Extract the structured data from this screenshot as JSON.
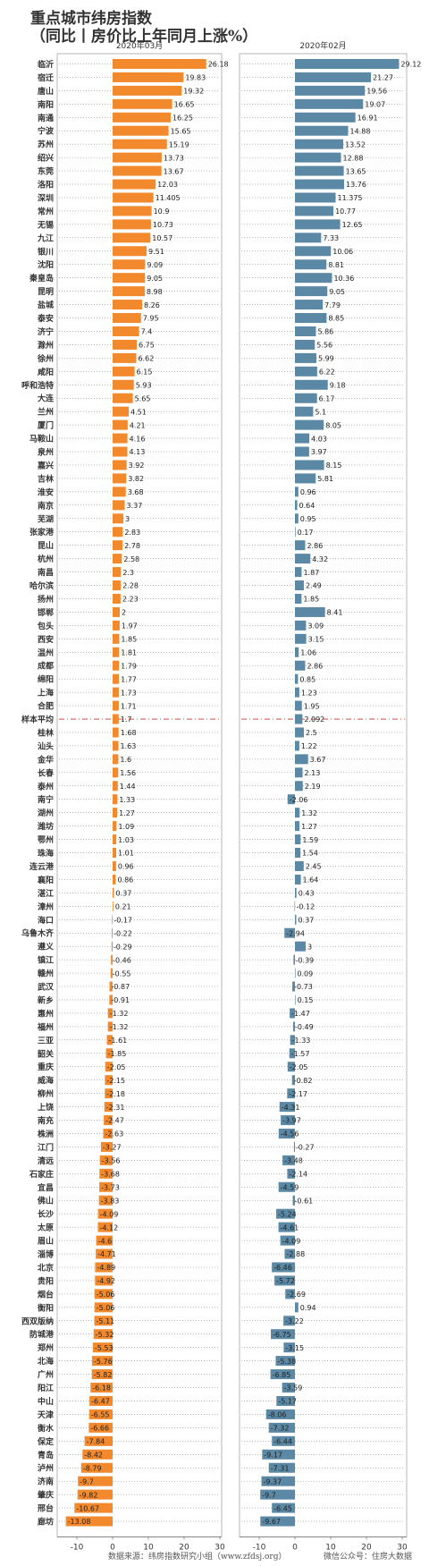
{
  "title_line1": "重点城市纬房指数",
  "title_line2": "（同比丨房价比上年同月上涨%）",
  "footer_source": "数据来源：纬房指数研究小组（www.zfdsj.org）",
  "footer_wechat": "微信公众号：住房大数据",
  "colors": {
    "march": "#f2892c",
    "feb": "#5b88a4",
    "avg_line": "#c0392b"
  },
  "chart_data": {
    "type": "bar",
    "orientation": "horizontal",
    "categories": [
      "临沂",
      "宿迁",
      "唐山",
      "南阳",
      "南通",
      "宁波",
      "苏州",
      "绍兴",
      "东莞",
      "洛阳",
      "深圳",
      "常州",
      "无锡",
      "九江",
      "银川",
      "沈阳",
      "秦皇岛",
      "昆明",
      "盐城",
      "泰安",
      "济宁",
      "滁州",
      "徐州",
      "咸阳",
      "呼和浩特",
      "大连",
      "兰州",
      "厦门",
      "马鞍山",
      "泉州",
      "嘉兴",
      "吉林",
      "淮安",
      "南京",
      "芜湖",
      "张家港",
      "昆山",
      "杭州",
      "南昌",
      "哈尔滨",
      "扬州",
      "邯郸",
      "包头",
      "西安",
      "温州",
      "成都",
      "绵阳",
      "上海",
      "合肥",
      "样本平均",
      "桂林",
      "汕头",
      "金华",
      "长春",
      "泰州",
      "南宁",
      "湖州",
      "潍坊",
      "鄂州",
      "珠海",
      "连云港",
      "襄阳",
      "湛江",
      "漳州",
      "海口",
      "乌鲁木齐",
      "遵义",
      "镇江",
      "赣州",
      "武汉",
      "新乡",
      "惠州",
      "福州",
      "三亚",
      "韶关",
      "重庆",
      "威海",
      "柳州",
      "上饶",
      "南充",
      "株洲",
      "江门",
      "清远",
      "石家庄",
      "宜昌",
      "佛山",
      "长沙",
      "太原",
      "眉山",
      "淄博",
      "北京",
      "贵阳",
      "烟台",
      "衡阳",
      "西双版纳",
      "防城港",
      "郑州",
      "北海",
      "广州",
      "阳江",
      "中山",
      "天津",
      "衡水",
      "保定",
      "青岛",
      "泸州",
      "济南",
      "肇庆",
      "邢台",
      "廊坊"
    ],
    "series": [
      {
        "name": "2020年03月",
        "values": [
          26.18,
          19.83,
          19.32,
          16.65,
          16.25,
          15.65,
          15.19,
          13.73,
          13.67,
          12.03,
          11.405,
          10.9,
          10.73,
          10.57,
          9.51,
          9.09,
          9.05,
          8.98,
          8.26,
          7.95,
          7.4,
          6.75,
          6.62,
          6.15,
          5.93,
          5.65,
          4.51,
          4.21,
          4.16,
          4.13,
          3.92,
          3.82,
          3.68,
          3.37,
          3,
          2.83,
          2.78,
          2.58,
          2.3,
          2.28,
          2.23,
          2,
          1.97,
          1.85,
          1.81,
          1.79,
          1.77,
          1.73,
          1.71,
          1.7,
          1.68,
          1.63,
          1.6,
          1.56,
          1.44,
          1.33,
          1.27,
          1.09,
          1.03,
          1.01,
          0.96,
          0.86,
          0.37,
          0.21,
          -0.17,
          -0.22,
          -0.29,
          -0.46,
          -0.55,
          -0.87,
          -0.91,
          -1.32,
          -1.32,
          -1.61,
          -1.85,
          -2.05,
          -2.15,
          -2.18,
          -2.31,
          -2.47,
          -2.63,
          -3.27,
          -3.56,
          -3.68,
          -3.73,
          -3.83,
          -4.09,
          -4.12,
          -4.6,
          -4.71,
          -4.89,
          -4.92,
          -5.06,
          -5.06,
          -5.11,
          -5.32,
          -5.53,
          -5.76,
          -5.82,
          -6.18,
          -6.47,
          -6.55,
          -6.66,
          -7.84,
          -8.42,
          -8.79,
          -9.7,
          -9.82,
          -10.67,
          -13.08
        ]
      },
      {
        "name": "2020年02月",
        "values": [
          29.12,
          21.27,
          19.56,
          19.07,
          16.91,
          14.88,
          13.52,
          12.88,
          13.65,
          13.76,
          11.375,
          10.77,
          12.65,
          7.33,
          10.06,
          8.81,
          10.36,
          9.05,
          7.79,
          8.85,
          5.86,
          5.56,
          5.99,
          6.22,
          9.18,
          6.17,
          5.1,
          8.05,
          4.03,
          3.97,
          8.15,
          5.81,
          0.96,
          0.64,
          0.95,
          0.17,
          2.86,
          4.32,
          1.87,
          2.49,
          1.85,
          8.41,
          3.09,
          3.15,
          1.06,
          2.86,
          0.85,
          1.23,
          1.95,
          2.092,
          2.5,
          1.22,
          3.67,
          2.13,
          2.19,
          -2.06,
          1.32,
          1.27,
          1.59,
          1.54,
          2.45,
          1.64,
          0.43,
          -0.12,
          0.37,
          -2.94,
          3,
          -0.39,
          0.09,
          -0.73,
          0.15,
          -1.47,
          -0.49,
          -1.33,
          -1.57,
          -2.05,
          -0.82,
          -2.17,
          -4.31,
          -3.97,
          -4.56,
          -0.27,
          -3.48,
          -2.14,
          -4.59,
          -0.61,
          -5.24,
          -4.61,
          -4.09,
          -2.88,
          -6.46,
          -5.72,
          -2.69,
          0.94,
          -3.22,
          -6.75,
          -3.15,
          -5.38,
          -6.85,
          -3.59,
          -5.17,
          -8.06,
          -7.32,
          -6.44,
          -9.17,
          -7.31,
          -9.37,
          -9.7,
          -6.45,
          -9.67
        ]
      }
    ],
    "average_category": "样本平均",
    "xlim": [
      -15,
      35
    ],
    "xticks": [
      -10,
      0,
      10,
      20,
      30
    ],
    "grid": "dotted horizontal"
  }
}
